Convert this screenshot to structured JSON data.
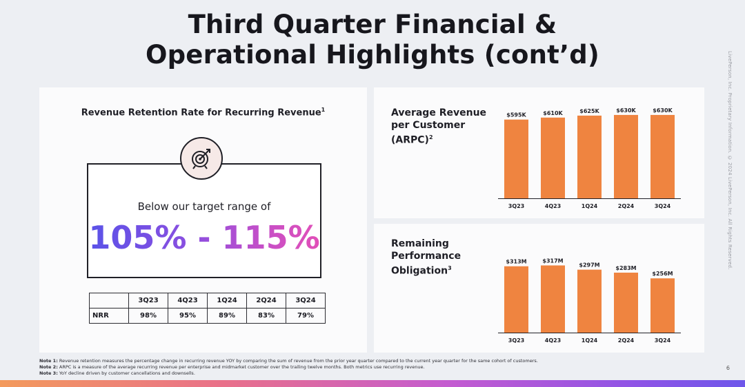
{
  "title": {
    "line1": "Third Quarter Financial &",
    "line2": "Operational Highlights (cont’d)"
  },
  "side_text": "LivePerson, Inc. Proprietary Information. © 2024 LivePerson, Inc. All Rights Reserved.",
  "retention": {
    "heading": "Revenue Retention Rate for Recurring Revenue",
    "heading_note": "1",
    "icon": "target-icon",
    "subtitle": "Below our target range of",
    "range": "105% - 115%",
    "table": {
      "headers": [
        "",
        "3Q23",
        "4Q23",
        "1Q24",
        "2Q24",
        "3Q24"
      ],
      "row_label": "NRR",
      "values": [
        "98%",
        "95%",
        "89%",
        "83%",
        "79%"
      ]
    }
  },
  "chart_data": [
    {
      "type": "bar",
      "title": "Average Revenue per Customer (ARPC)",
      "title_lines": [
        "Average Revenue",
        "per Customer",
        "(ARPC)"
      ],
      "title_note": "2",
      "categories": [
        "3Q23",
        "4Q23",
        "1Q24",
        "2Q24",
        "3Q24"
      ],
      "values": [
        595,
        610,
        625,
        630,
        630
      ],
      "labels": [
        "$595K",
        "$610K",
        "$625K",
        "$630K",
        "$630K"
      ],
      "ylim": [
        0,
        640
      ],
      "color": "#ef8440"
    },
    {
      "type": "bar",
      "title": "Remaining Performance Obligation",
      "title_lines": [
        "Remaining",
        "Performance",
        "Obligation"
      ],
      "title_note": "3",
      "categories": [
        "3Q23",
        "4Q23",
        "1Q24",
        "2Q24",
        "3Q24"
      ],
      "values": [
        313,
        317,
        297,
        283,
        256
      ],
      "labels": [
        "$313M",
        "$317M",
        "$297M",
        "$283M",
        "$256M"
      ],
      "ylim": [
        0,
        325
      ],
      "color": "#ef8440"
    }
  ],
  "notes": [
    {
      "label": "Note 1:",
      "text": "Revenue retention measures the percentage change in recurring revenue YOY by comparing the sum of revenue from the prior year quarter compared to the current year quarter for the same cohort of customers."
    },
    {
      "label": "Note 2:",
      "text": "ARPC is a measure of the average recurring revenue per enterprise and midmarket customer over the trailing twelve months.  Both metrics use recurring revenue."
    },
    {
      "label": "Note 3:",
      "text": "YoY decline driven by customer cancellations and downsells."
    }
  ],
  "page_number": "6"
}
